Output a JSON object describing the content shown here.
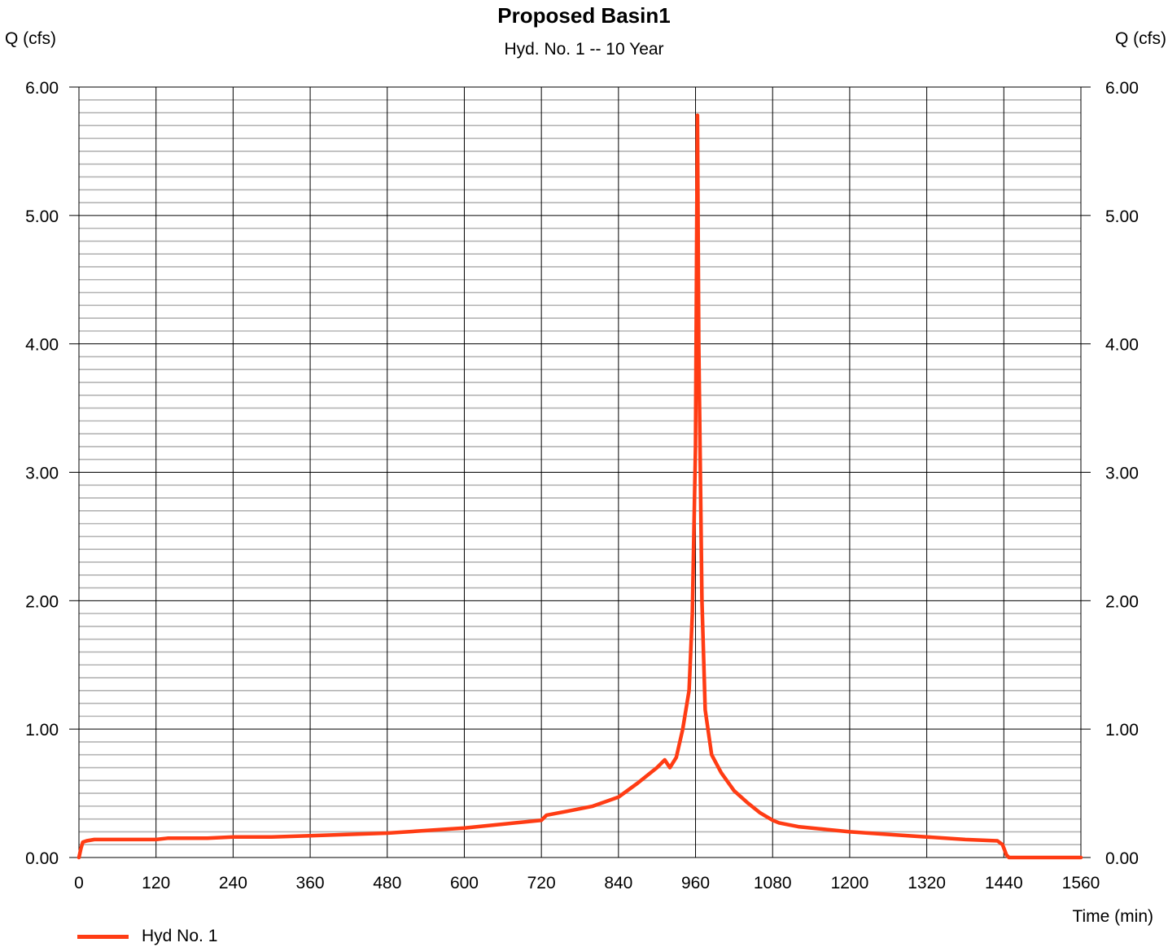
{
  "chart_data": {
    "type": "line",
    "title": "Proposed Basin1",
    "subtitle": "Hyd. No. 1 -- 10 Year",
    "ylabel_left": "Q (cfs)",
    "ylabel_right": "Q (cfs)",
    "xlabel": "Time (min)",
    "xlim": [
      0,
      1560
    ],
    "ylim": [
      0,
      6
    ],
    "x_ticks": [
      0,
      120,
      240,
      360,
      480,
      600,
      720,
      840,
      960,
      1080,
      1200,
      1320,
      1440,
      1560
    ],
    "y_ticks": [
      0,
      1,
      2,
      3,
      4,
      5,
      6
    ],
    "y_tick_labels": [
      "0.00",
      "1.00",
      "2.00",
      "3.00",
      "4.00",
      "5.00",
      "6.00"
    ],
    "y_minor_step": 0.1,
    "grid": true,
    "legend_position": "bottom-left",
    "series": [
      {
        "name": "Hyd No. 1",
        "color": "#ff3c14",
        "x": [
          0,
          3,
          6,
          12,
          24,
          60,
          120,
          138,
          200,
          240,
          300,
          360,
          420,
          480,
          540,
          600,
          660,
          720,
          728,
          760,
          800,
          840,
          870,
          900,
          912,
          920,
          930,
          940,
          950,
          955,
          960,
          962,
          963,
          965,
          970,
          975,
          985,
          1000,
          1020,
          1040,
          1060,
          1080,
          1090,
          1120,
          1160,
          1200,
          1260,
          1320,
          1380,
          1430,
          1438,
          1444,
          1448,
          1460,
          1520,
          1560
        ],
        "y": [
          0.0,
          0.07,
          0.12,
          0.13,
          0.14,
          0.14,
          0.14,
          0.15,
          0.15,
          0.16,
          0.16,
          0.17,
          0.18,
          0.19,
          0.21,
          0.23,
          0.26,
          0.29,
          0.33,
          0.36,
          0.4,
          0.47,
          0.58,
          0.7,
          0.76,
          0.7,
          0.78,
          1.0,
          1.3,
          1.9,
          3.2,
          5.0,
          5.78,
          4.0,
          2.0,
          1.15,
          0.8,
          0.66,
          0.52,
          0.43,
          0.35,
          0.29,
          0.27,
          0.24,
          0.22,
          0.2,
          0.18,
          0.16,
          0.14,
          0.13,
          0.1,
          0.02,
          0.0,
          0.0,
          0.0,
          0.0
        ]
      }
    ]
  },
  "colors": {
    "line": "#ff3c14",
    "major_grid": "#000000",
    "minor_grid": "#b4b4b4"
  }
}
